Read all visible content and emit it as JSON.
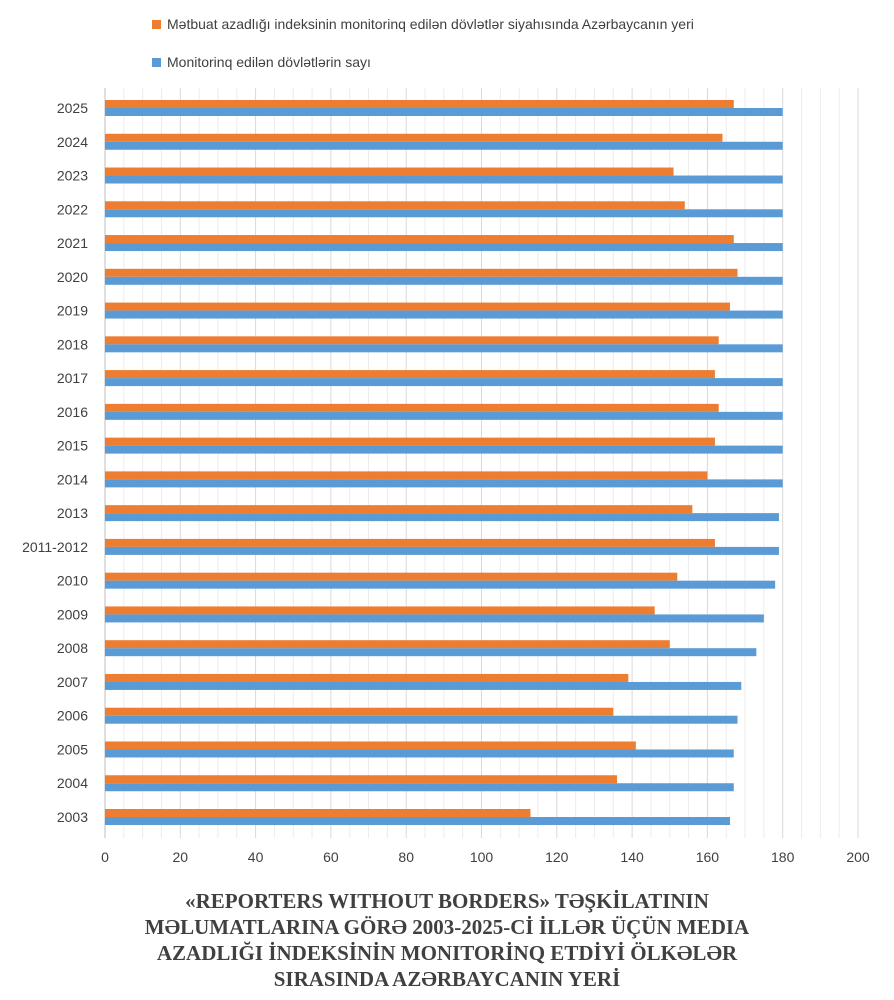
{
  "chart_data": {
    "type": "bar",
    "orientation": "horizontal",
    "categories": [
      "2003",
      "2004",
      "2005",
      "2006",
      "2007",
      "2008",
      "2009",
      "2010",
      "2011-2012",
      "2013",
      "2014",
      "2015",
      "2016",
      "2017",
      "2018",
      "2019",
      "2020",
      "2021",
      "2022",
      "2023",
      "2024",
      "2025"
    ],
    "series": [
      {
        "name": "Mətbuat azadlığı indeksinin monitorinq edilən dövlətlər siyahısında Azərbaycanın yeri",
        "color": "#ED7D31",
        "values": [
          113,
          136,
          141,
          135,
          139,
          150,
          146,
          152,
          162,
          156,
          160,
          162,
          163,
          162,
          163,
          166,
          168,
          167,
          154,
          151,
          164,
          167
        ]
      },
      {
        "name": "Monitorinq edilən dövlətlərin sayı",
        "color": "#5B9BD5",
        "values": [
          166,
          167,
          167,
          168,
          169,
          173,
          175,
          178,
          179,
          179,
          180,
          180,
          180,
          180,
          180,
          180,
          180,
          180,
          180,
          180,
          180,
          180
        ]
      }
    ],
    "xlim": [
      0,
      200
    ],
    "xticks": [
      "0",
      "20",
      "40",
      "60",
      "80",
      "100",
      "120",
      "140",
      "160",
      "180",
      "200"
    ],
    "grid": true,
    "legend_position": "top"
  },
  "caption_lines": [
    "«REPORTERS WITHOUT BORDERS» TƏŞKİLATININ",
    "MƏLUMATLARINA GÖRƏ  2003-2025-Cİ İLLƏR ÜÇÜN MEDIA",
    "AZADLIĞI İNDEKSİNİN MONITORİNQ ETDİYİ ÖLKƏLƏR",
    "SIRASINDA AZƏRBAYCANIN YERİ"
  ]
}
